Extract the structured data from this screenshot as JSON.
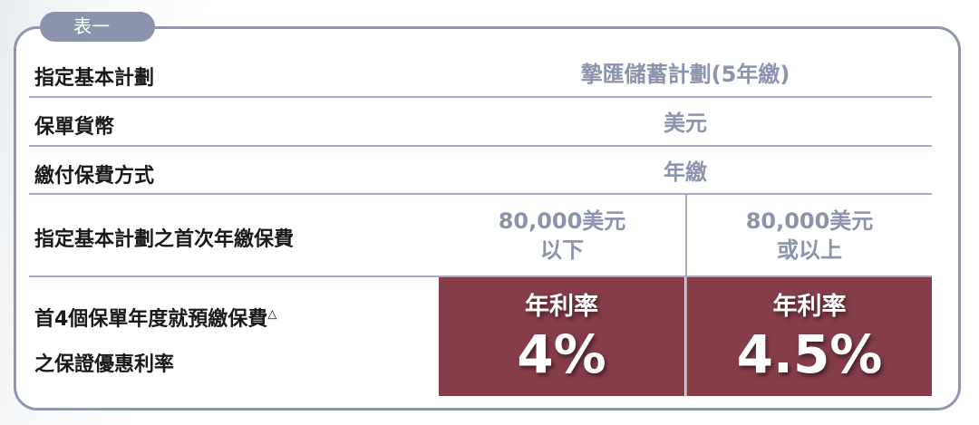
{
  "tab_label": "表一",
  "rows": [
    {
      "label": "指定基本計劃",
      "value": "摯匯儲蓄計劃(5年繳)"
    },
    {
      "label": "保單貨幣",
      "value": "美元"
    },
    {
      "label": "繳付保費方式",
      "value": "年繳"
    },
    {
      "label": "指定基本計劃之首次年繳保費",
      "values": [
        {
          "line1": "80,000美元",
          "line2": "以下"
        },
        {
          "line1": "80,000美元",
          "line2": "或以上"
        }
      ]
    },
    {
      "label_line1": "首4個保單年度就預繳保費",
      "label_mark": "△",
      "label_line2": "之保證優惠利率",
      "rates": [
        {
          "title": "年利率",
          "value": "4%"
        },
        {
          "title": "年利率",
          "value": "4.5%"
        }
      ]
    }
  ],
  "colors": {
    "frame": "#8e96b0",
    "value_text": "#8b93ad",
    "rate_bg": "#853d4a"
  }
}
